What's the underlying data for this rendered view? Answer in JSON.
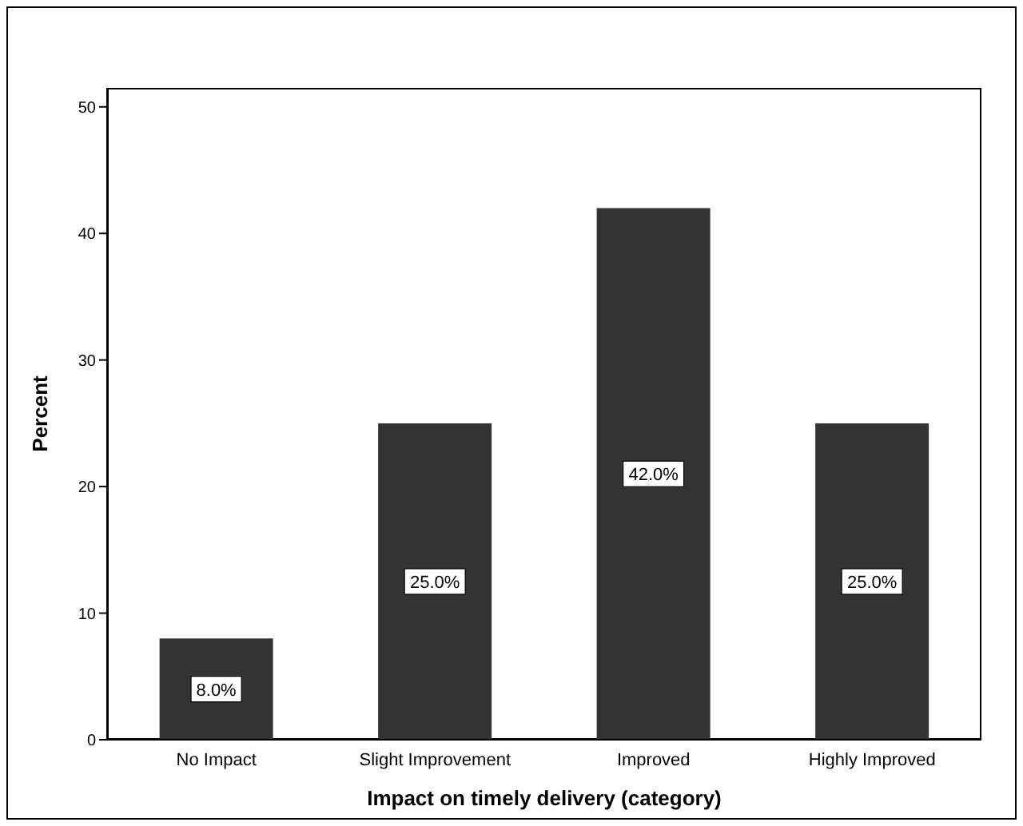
{
  "chart_data": {
    "type": "bar",
    "xlabel": "Impact on timely delivery (category)",
    "ylabel": "Percent",
    "categories": [
      "No Impact",
      "Slight Improvement",
      "Improved",
      "Highly Improved"
    ],
    "values": [
      8,
      25,
      42,
      25
    ],
    "color": "#333333",
    "value_labels": [
      "8.0%",
      "25.0%",
      "42.0%",
      "25.0%"
    ],
    "ylim": [
      0,
      51.5
    ],
    "yticks": [
      0,
      10,
      20,
      30,
      40,
      50
    ],
    "grid": false,
    "legend": false
  }
}
